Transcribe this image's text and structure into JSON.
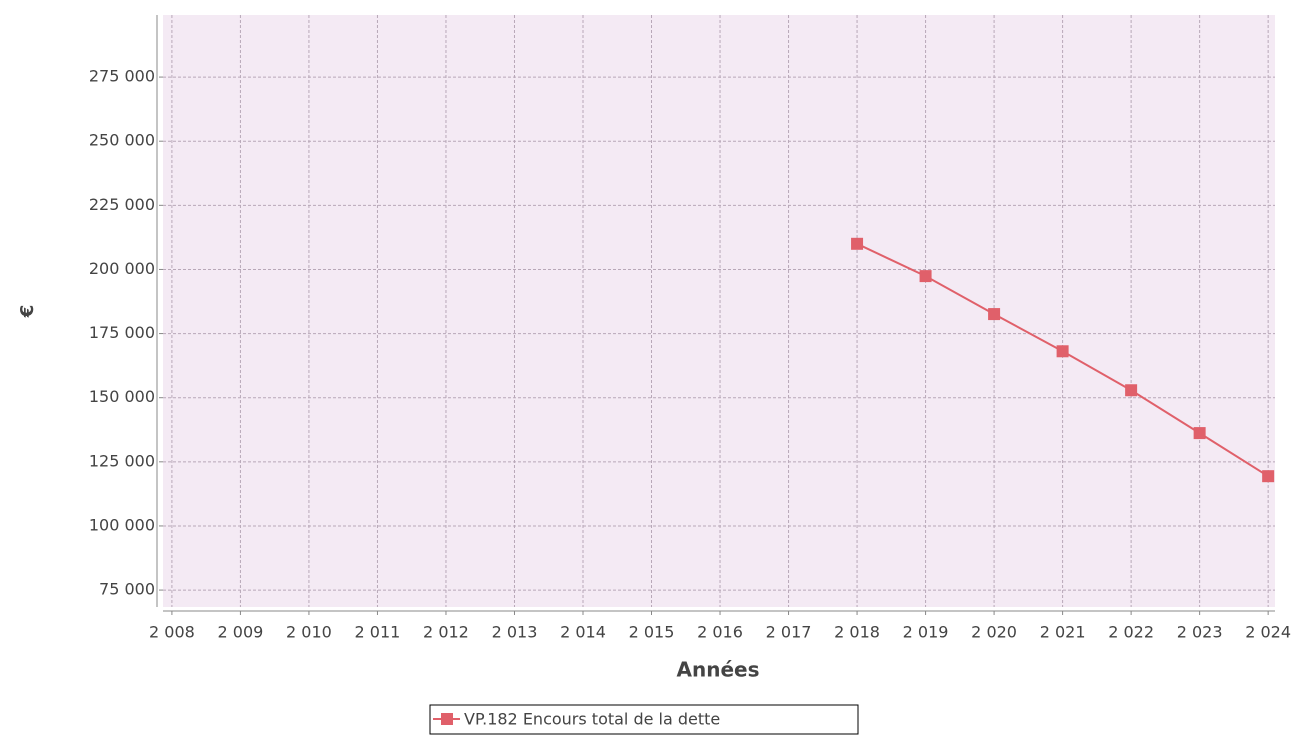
{
  "chart_data": {
    "type": "line",
    "x_label": "Années",
    "y_label": "€",
    "x": [
      2018,
      2019,
      2020,
      2021,
      2022,
      2023,
      2024
    ],
    "series": [
      {
        "name": "VP.182 Encours total de la dette",
        "color": "#e0606a",
        "values": [
          210000,
          197400,
          182600,
          168100,
          152900,
          136200,
          119400
        ]
      }
    ],
    "xlim": [
      2007.87,
      2024.1
    ],
    "xticks": [
      {
        "value": 2008,
        "label": "2 008"
      },
      {
        "value": 2009,
        "label": "2 009"
      },
      {
        "value": 2010,
        "label": "2 010"
      },
      {
        "value": 2011,
        "label": "2 011"
      },
      {
        "value": 2012,
        "label": "2 012"
      },
      {
        "value": 2013,
        "label": "2 013"
      },
      {
        "value": 2014,
        "label": "2 014"
      },
      {
        "value": 2015,
        "label": "2 015"
      },
      {
        "value": 2016,
        "label": "2 016"
      },
      {
        "value": 2017,
        "label": "2 017"
      },
      {
        "value": 2018,
        "label": "2 018"
      },
      {
        "value": 2019,
        "label": "2 019"
      },
      {
        "value": 2020,
        "label": "2 020"
      },
      {
        "value": 2021,
        "label": "2 021"
      },
      {
        "value": 2022,
        "label": "2 022"
      },
      {
        "value": 2023,
        "label": "2 023"
      },
      {
        "value": 2024,
        "label": "2 024"
      }
    ],
    "ylim": [
      68400,
      299200
    ],
    "yticks": [
      {
        "value": 75000,
        "label": "75 000"
      },
      {
        "value": 100000,
        "label": "100 000"
      },
      {
        "value": 125000,
        "label": "125 000"
      },
      {
        "value": 150000,
        "label": "150 000"
      },
      {
        "value": 175000,
        "label": "175 000"
      },
      {
        "value": 200000,
        "label": "200 000"
      },
      {
        "value": 225000,
        "label": "225 000"
      },
      {
        "value": 250000,
        "label": "250 000"
      },
      {
        "value": 275000,
        "label": "275 000"
      }
    ],
    "grid": true
  }
}
